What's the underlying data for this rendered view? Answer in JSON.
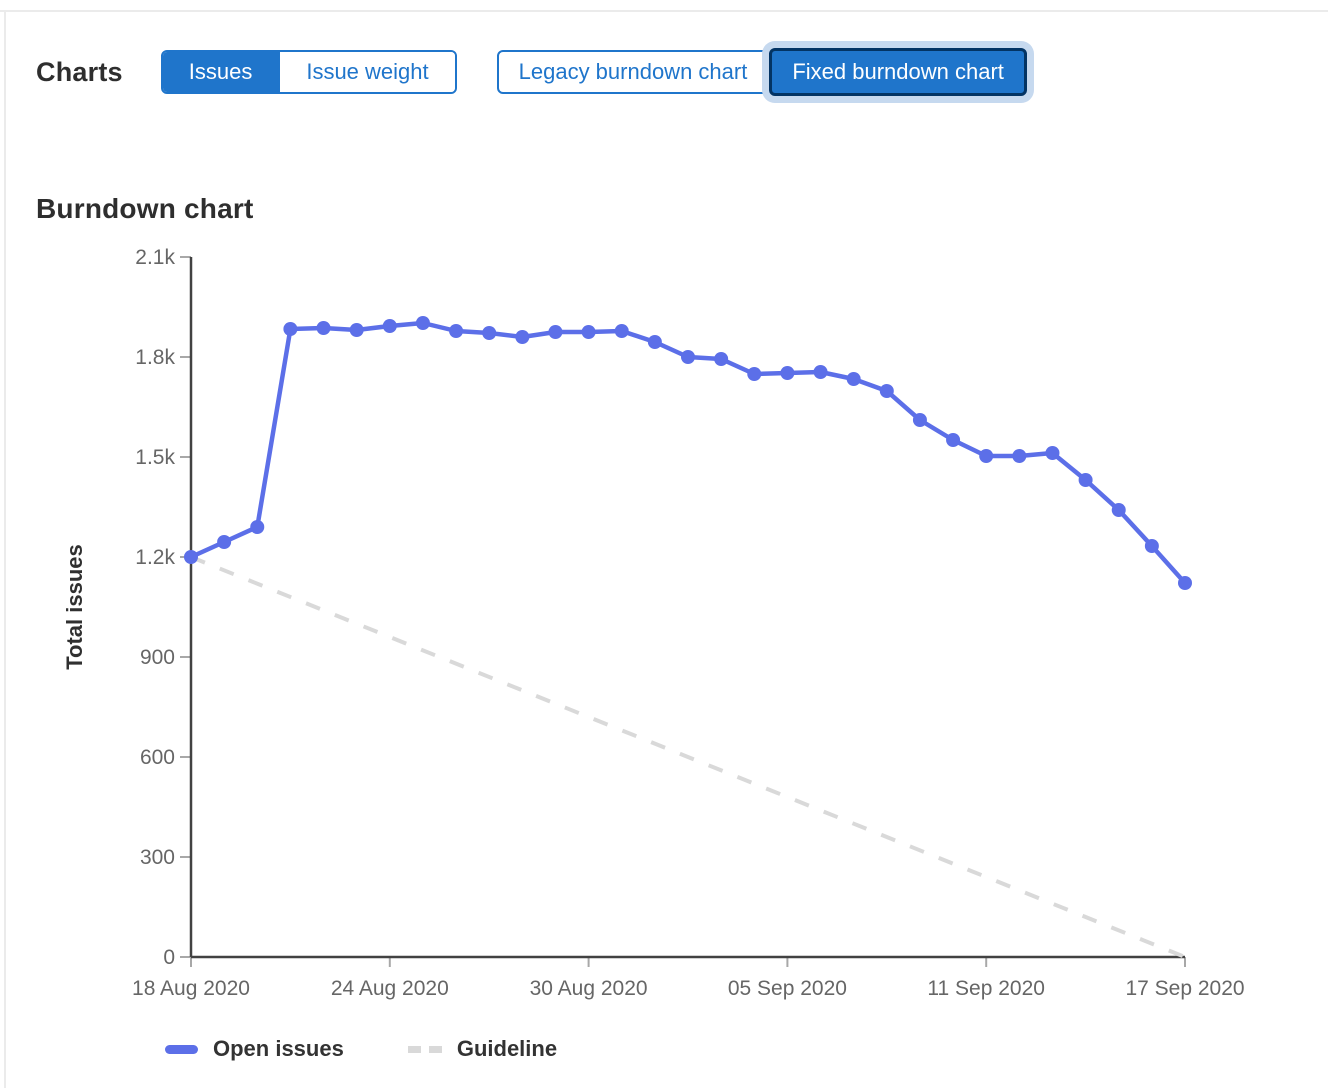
{
  "toolbar": {
    "charts_label": "Charts",
    "metric_toggle": [
      {
        "label": "Issues",
        "selected": true
      },
      {
        "label": "Issue weight",
        "selected": false
      }
    ],
    "chart_type_toggle": [
      {
        "label": "Legacy burndown chart",
        "selected": false
      },
      {
        "label": "Fixed burndown chart",
        "selected": true,
        "focused": true
      }
    ]
  },
  "section": {
    "title": "Burndown chart"
  },
  "theme": {
    "primary_blue": "#1f75cb",
    "focus_border": "#033464",
    "focus_halo": "#c6d9ef",
    "axis_color": "#424242",
    "tick_mark_color": "#a8a8a8",
    "tick_text_color": "#666666"
  },
  "chart_data": {
    "type": "line",
    "title": "Burndown chart",
    "xlabel": "",
    "ylabel": "Total issues",
    "ylim": [
      0,
      2100
    ],
    "grid": false,
    "legend_position": "bottom",
    "legend": [
      "Open issues",
      "Guideline"
    ],
    "x": [
      "18 Aug 2020",
      "19 Aug 2020",
      "20 Aug 2020",
      "21 Aug 2020",
      "22 Aug 2020",
      "23 Aug 2020",
      "24 Aug 2020",
      "25 Aug 2020",
      "26 Aug 2020",
      "27 Aug 2020",
      "28 Aug 2020",
      "29 Aug 2020",
      "30 Aug 2020",
      "31 Aug 2020",
      "01 Sep 2020",
      "02 Sep 2020",
      "03 Sep 2020",
      "04 Sep 2020",
      "05 Sep 2020",
      "06 Sep 2020",
      "07 Sep 2020",
      "08 Sep 2020",
      "09 Sep 2020",
      "10 Sep 2020",
      "11 Sep 2020",
      "12 Sep 2020",
      "13 Sep 2020",
      "14 Sep 2020",
      "15 Sep 2020",
      "16 Sep 2020",
      "17 Sep 2020"
    ],
    "series": [
      {
        "name": "Open issues",
        "color": "#5c6fe8",
        "style": "solid",
        "values": [
          1200,
          1245,
          1290,
          1884,
          1887,
          1881,
          1893,
          1902,
          1878,
          1872,
          1860,
          1875,
          1875,
          1878,
          1845,
          1800,
          1794,
          1749,
          1752,
          1755,
          1734,
          1698,
          1611,
          1551,
          1503,
          1503,
          1512,
          1431,
          1341,
          1233,
          1122
        ]
      }
    ],
    "guideline": {
      "name": "Guideline",
      "color": "#d9d9d9",
      "style": "dashed",
      "start_value": 1200,
      "end_value": 0
    },
    "y_ticks": [
      {
        "value": 0,
        "label": "0"
      },
      {
        "value": 300,
        "label": "300"
      },
      {
        "value": 600,
        "label": "600"
      },
      {
        "value": 900,
        "label": "900"
      },
      {
        "value": 1200,
        "label": "1.2k"
      },
      {
        "value": 1500,
        "label": "1.5k"
      },
      {
        "value": 1800,
        "label": "1.8k"
      },
      {
        "value": 2100,
        "label": "2.1k"
      }
    ],
    "x_ticks": [
      {
        "index": 0,
        "label": "18 Aug 2020"
      },
      {
        "index": 6,
        "label": "24 Aug 2020"
      },
      {
        "index": 12,
        "label": "30 Aug 2020"
      },
      {
        "index": 18,
        "label": "05 Sep 2020"
      },
      {
        "index": 24,
        "label": "11 Sep 2020"
      },
      {
        "index": 30,
        "label": "17 Sep 2020"
      }
    ]
  }
}
